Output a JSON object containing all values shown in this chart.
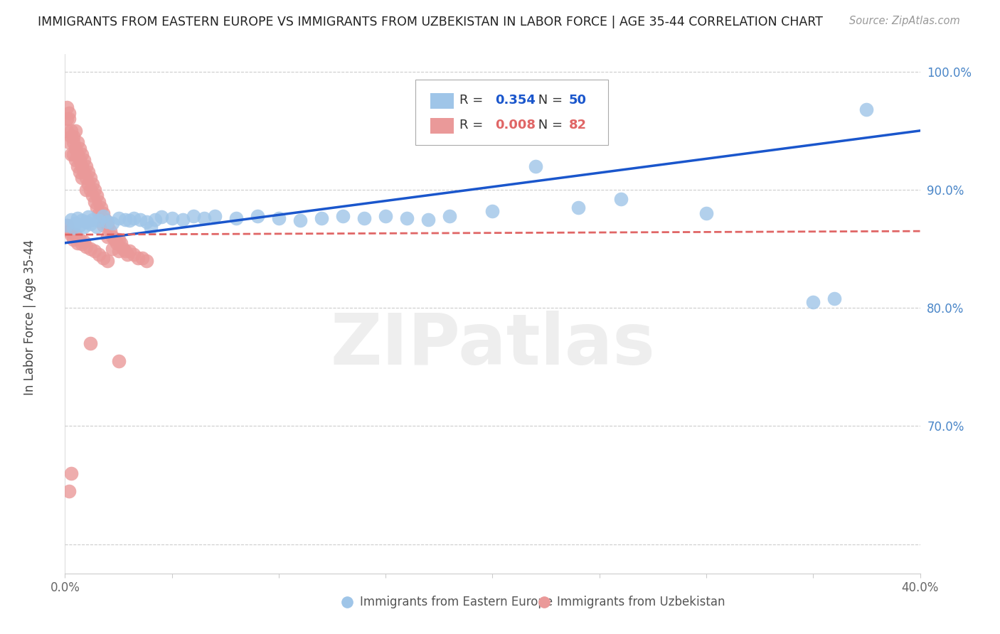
{
  "title": "IMMIGRANTS FROM EASTERN EUROPE VS IMMIGRANTS FROM UZBEKISTAN IN LABOR FORCE | AGE 35-44 CORRELATION CHART",
  "source": "Source: ZipAtlas.com",
  "ylabel": "In Labor Force | Age 35-44",
  "xlim": [
    0.0,
    0.4
  ],
  "ylim": [
    0.575,
    1.015
  ],
  "xticks": [
    0.0,
    0.05,
    0.1,
    0.15,
    0.2,
    0.25,
    0.3,
    0.35,
    0.4
  ],
  "xticklabels": [
    "0.0%",
    "",
    "",
    "",
    "",
    "",
    "",
    "",
    "40.0%"
  ],
  "yticks": [
    0.6,
    0.7,
    0.8,
    0.9,
    1.0
  ],
  "yticklabels_right": [
    "",
    "70.0%",
    "80.0%",
    "90.0%",
    "100.0%"
  ],
  "blue_color": "#9fc5e8",
  "pink_color": "#ea9999",
  "blue_line_color": "#1a56cc",
  "pink_line_color": "#e06666",
  "grid_color": "#cccccc",
  "background_color": "#ffffff",
  "legend_label_blue": "Immigrants from Eastern Europe",
  "legend_label_pink": "Immigrants from Uzbekistan",
  "R_blue": 0.354,
  "N_blue": 50,
  "R_pink": 0.008,
  "N_pink": 82,
  "blue_x": [
    0.001,
    0.003,
    0.004,
    0.005,
    0.006,
    0.007,
    0.008,
    0.009,
    0.01,
    0.011,
    0.012,
    0.013,
    0.015,
    0.016,
    0.018,
    0.02,
    0.022,
    0.025,
    0.028,
    0.03,
    0.032,
    0.035,
    0.038,
    0.04,
    0.042,
    0.045,
    0.05,
    0.055,
    0.06,
    0.065,
    0.07,
    0.08,
    0.09,
    0.1,
    0.11,
    0.12,
    0.13,
    0.14,
    0.15,
    0.16,
    0.17,
    0.18,
    0.2,
    0.22,
    0.24,
    0.26,
    0.3,
    0.35,
    0.36,
    0.375
  ],
  "blue_y": [
    0.87,
    0.875,
    0.868,
    0.872,
    0.876,
    0.87,
    0.874,
    0.869,
    0.873,
    0.877,
    0.871,
    0.875,
    0.869,
    0.874,
    0.878,
    0.873,
    0.872,
    0.876,
    0.875,
    0.874,
    0.876,
    0.875,
    0.873,
    0.868,
    0.875,
    0.877,
    0.876,
    0.875,
    0.878,
    0.876,
    0.878,
    0.876,
    0.878,
    0.876,
    0.874,
    0.876,
    0.878,
    0.876,
    0.878,
    0.876,
    0.875,
    0.878,
    0.882,
    0.92,
    0.885,
    0.892,
    0.88,
    0.805,
    0.808,
    0.968
  ],
  "pink_x": [
    0.001,
    0.001,
    0.001,
    0.002,
    0.002,
    0.002,
    0.003,
    0.003,
    0.003,
    0.004,
    0.004,
    0.004,
    0.005,
    0.005,
    0.005,
    0.006,
    0.006,
    0.006,
    0.007,
    0.007,
    0.007,
    0.008,
    0.008,
    0.008,
    0.009,
    0.009,
    0.01,
    0.01,
    0.01,
    0.011,
    0.011,
    0.012,
    0.012,
    0.013,
    0.013,
    0.014,
    0.014,
    0.015,
    0.015,
    0.016,
    0.016,
    0.017,
    0.018,
    0.018,
    0.019,
    0.02,
    0.02,
    0.021,
    0.022,
    0.022,
    0.023,
    0.024,
    0.025,
    0.025,
    0.026,
    0.027,
    0.028,
    0.029,
    0.03,
    0.032,
    0.034,
    0.036,
    0.038,
    0.001,
    0.002,
    0.003,
    0.004,
    0.005,
    0.006,
    0.007,
    0.008,
    0.009,
    0.01,
    0.012,
    0.014,
    0.016,
    0.018,
    0.02,
    0.002,
    0.003,
    0.012,
    0.025
  ],
  "pink_y": [
    0.96,
    0.95,
    0.97,
    0.96,
    0.94,
    0.965,
    0.95,
    0.945,
    0.93,
    0.945,
    0.94,
    0.93,
    0.95,
    0.935,
    0.925,
    0.94,
    0.93,
    0.92,
    0.935,
    0.925,
    0.915,
    0.93,
    0.92,
    0.91,
    0.925,
    0.915,
    0.92,
    0.91,
    0.9,
    0.915,
    0.905,
    0.91,
    0.9,
    0.905,
    0.895,
    0.9,
    0.89,
    0.895,
    0.885,
    0.89,
    0.88,
    0.885,
    0.88,
    0.87,
    0.875,
    0.87,
    0.86,
    0.865,
    0.86,
    0.85,
    0.858,
    0.855,
    0.858,
    0.848,
    0.855,
    0.85,
    0.848,
    0.845,
    0.848,
    0.845,
    0.842,
    0.842,
    0.84,
    0.87,
    0.865,
    0.862,
    0.858,
    0.862,
    0.855,
    0.858,
    0.854,
    0.856,
    0.852,
    0.85,
    0.848,
    0.845,
    0.842,
    0.84,
    0.645,
    0.66,
    0.77,
    0.755
  ],
  "blue_line_x": [
    0.0,
    0.4
  ],
  "blue_line_y": [
    0.855,
    0.95
  ],
  "pink_line_x": [
    0.0,
    0.4
  ],
  "pink_line_y": [
    0.862,
    0.865
  ],
  "watermark": "ZIPatlas",
  "watermark_color": "#e0e0e0"
}
